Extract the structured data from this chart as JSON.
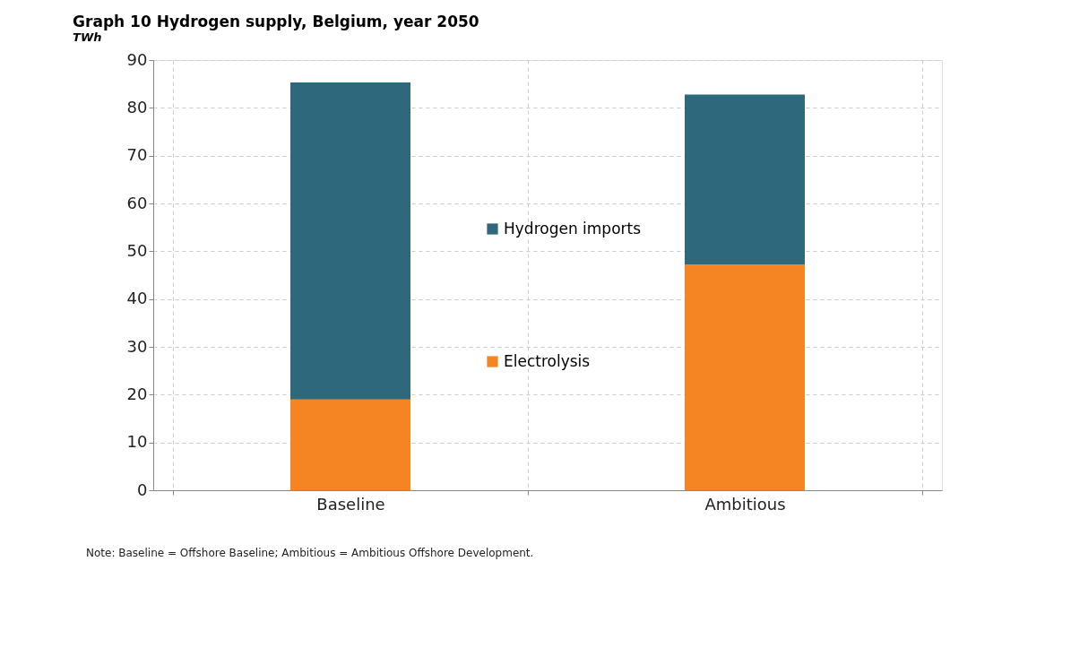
{
  "chart_data": {
    "type": "bar",
    "title": "Graph 10    Hydrogen supply, Belgium, year 2050",
    "subtitle": "TWh",
    "categories": [
      "Baseline",
      "Ambitious"
    ],
    "series": [
      {
        "name": "Electrolysis",
        "color": "#f58523",
        "values": [
          19.0,
          47.2
        ]
      },
      {
        "name": "Hydrogen imports",
        "color": "#2e687d",
        "values": [
          66.3,
          35.6
        ]
      }
    ],
    "stacked": true,
    "ylim": [
      0,
      90
    ],
    "yticks": [
      0,
      10,
      20,
      30,
      40,
      50,
      60,
      70,
      80,
      90
    ],
    "grid": true,
    "legend": "center",
    "annotations": [
      "Note:      Baseline = Offshore Baseline; Ambitious = Ambitious Offshore Development."
    ]
  }
}
